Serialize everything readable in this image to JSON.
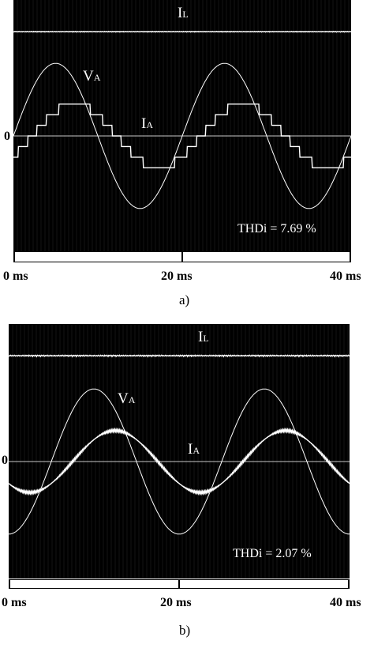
{
  "chart_data": [
    {
      "type": "line",
      "panel": "a)",
      "x_unit": "ms",
      "xlim": [
        0,
        40
      ],
      "ylim": [
        -1.25,
        1.25
      ],
      "xtick_labels": [
        "0 ms",
        "20 ms",
        "40 ms"
      ],
      "zero_label": "0",
      "annotation": "THDi = 7.69 %",
      "series": [
        {
          "name": "IL",
          "label_main": "I",
          "label_sub": "L",
          "kind": "dc",
          "level": 1.12
        },
        {
          "name": "VA",
          "label_main": "V",
          "label_sub": "A",
          "kind": "sine",
          "amplitude": 0.82,
          "phase_deg": 0,
          "period_ms": 20
        },
        {
          "name": "IA",
          "label_main": "I",
          "label_sub": "A",
          "kind": "stepped-sine",
          "amplitude": 0.36,
          "phase_deg": -40,
          "period_ms": 20,
          "steps": 6
        }
      ],
      "colors": {
        "background": "#000000",
        "trace": "#ffffff",
        "zero_line": "#c8c8c8"
      }
    },
    {
      "type": "line",
      "panel": "b)",
      "x_unit": "ms",
      "xlim": [
        0,
        40
      ],
      "ylim": [
        -1.25,
        1.25
      ],
      "xtick_labels": [
        "0 ms",
        "20 ms",
        "40 ms"
      ],
      "zero_label": "0",
      "annotation": "THDi = 2.07 %",
      "series": [
        {
          "name": "IL",
          "label_main": "I",
          "label_sub": "L",
          "kind": "dc",
          "level": 1.12
        },
        {
          "name": "VA",
          "label_main": "V",
          "label_sub": "A",
          "kind": "sine",
          "amplitude": 0.82,
          "phase_deg": -90,
          "period_ms": 20
        },
        {
          "name": "IA",
          "label_main": "I",
          "label_sub": "A",
          "kind": "sine",
          "amplitude": 0.35,
          "phase_deg": -135,
          "period_ms": 20
        }
      ],
      "colors": {
        "background": "#000000",
        "trace": "#ffffff",
        "zero_line": "#c8c8c8"
      }
    }
  ]
}
